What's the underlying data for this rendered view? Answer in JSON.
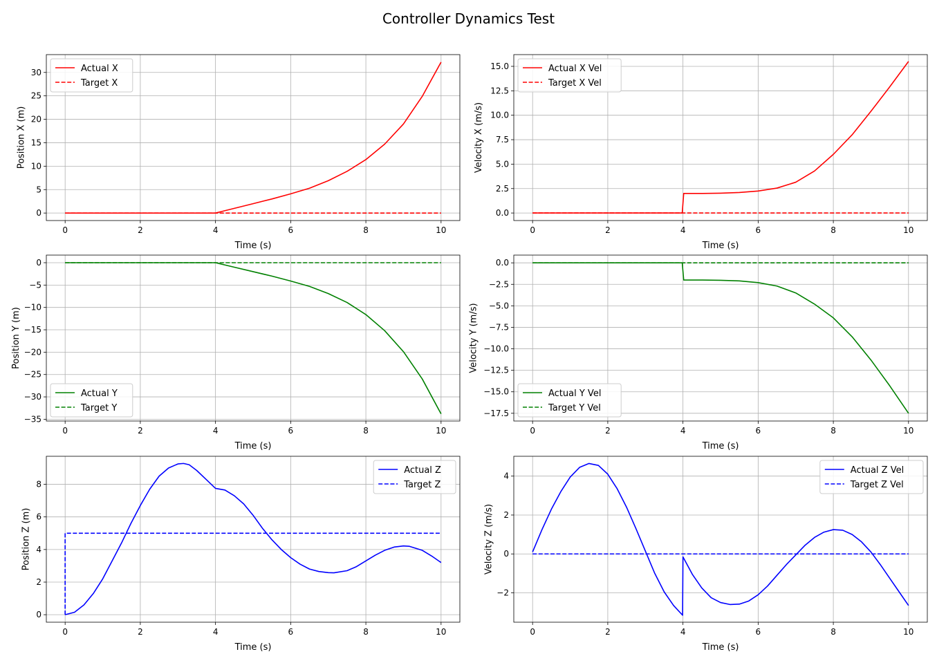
{
  "figure": {
    "title": "Controller Dynamics Test"
  },
  "colors": {
    "x": "#ff0000",
    "y": "#008000",
    "z": "#0000ff",
    "grid": "#b0b0b0",
    "axes": "#000000"
  },
  "chart_data": [
    {
      "id": "pos-x",
      "type": "line",
      "xlabel": "Time (s)",
      "ylabel": "Position X (m)",
      "xlim": [
        -0.5,
        10.5
      ],
      "ylim": [
        -1.6,
        33.8
      ],
      "xticks": [
        0,
        2,
        4,
        6,
        8,
        10
      ],
      "yticks": [
        0,
        5,
        10,
        15,
        20,
        25,
        30
      ],
      "ytick_labels": [
        "0",
        "5",
        "10",
        "15",
        "20",
        "25",
        "30"
      ],
      "grid": true,
      "legend_loc": "upper-left",
      "series": [
        {
          "name": "Actual X",
          "style": "solid",
          "color": "#ff0000",
          "x": [
            0,
            4,
            4.5,
            5,
            5.5,
            6,
            6.5,
            7,
            7.5,
            8,
            8.5,
            9,
            9.5,
            10
          ],
          "y": [
            0,
            0,
            1.0,
            2.0,
            3.0,
            4.1,
            5.3,
            6.9,
            8.9,
            11.4,
            14.7,
            19.0,
            24.9,
            32.2
          ]
        },
        {
          "name": "Target X",
          "style": "dashed",
          "color": "#ff0000",
          "x": [
            0,
            10
          ],
          "y": [
            0,
            0
          ]
        }
      ]
    },
    {
      "id": "vel-x",
      "type": "line",
      "xlabel": "Time (s)",
      "ylabel": "Velocity X (m/s)",
      "xlim": [
        -0.5,
        10.5
      ],
      "ylim": [
        -0.77,
        16.2
      ],
      "xticks": [
        0,
        2,
        4,
        6,
        8,
        10
      ],
      "yticks": [
        0,
        2.5,
        5,
        7.5,
        10,
        12.5,
        15
      ],
      "ytick_labels": [
        "0.0",
        "2.5",
        "5.0",
        "7.5",
        "10.0",
        "12.5",
        "15.0"
      ],
      "grid": true,
      "legend_loc": "upper-left",
      "series": [
        {
          "name": "Actual X Vel",
          "style": "solid",
          "color": "#ff0000",
          "x": [
            0,
            3.98,
            4.02,
            4.5,
            5,
            5.5,
            6,
            6.5,
            7,
            7.5,
            8,
            8.5,
            9,
            9.5,
            10
          ],
          "y": [
            0,
            0,
            2.0,
            2.0,
            2.03,
            2.1,
            2.25,
            2.55,
            3.15,
            4.3,
            6.0,
            8.0,
            10.4,
            12.9,
            15.5
          ]
        },
        {
          "name": "Target X Vel",
          "style": "dashed",
          "color": "#ff0000",
          "x": [
            0,
            10
          ],
          "y": [
            0,
            0
          ]
        }
      ]
    },
    {
      "id": "pos-y",
      "type": "line",
      "xlabel": "Time (s)",
      "ylabel": "Position Y (m)",
      "xlim": [
        -0.5,
        10.5
      ],
      "ylim": [
        -35.4,
        1.7
      ],
      "xticks": [
        0,
        2,
        4,
        6,
        8,
        10
      ],
      "yticks": [
        0,
        -5,
        -10,
        -15,
        -20,
        -25,
        -30,
        -35
      ],
      "ytick_labels": [
        "0",
        "−5",
        "−10",
        "−15",
        "−20",
        "−25",
        "−30",
        "−35"
      ],
      "grid": true,
      "legend_loc": "lower-left",
      "series": [
        {
          "name": "Actual Y",
          "style": "solid",
          "color": "#008000",
          "x": [
            0,
            4,
            4.5,
            5,
            5.5,
            6,
            6.5,
            7,
            7.5,
            8,
            8.5,
            9,
            9.5,
            10
          ],
          "y": [
            0,
            0,
            -1.0,
            -2.0,
            -3.0,
            -4.1,
            -5.3,
            -6.9,
            -8.9,
            -11.6,
            -15.2,
            -19.9,
            -26.0,
            -33.8
          ]
        },
        {
          "name": "Target Y",
          "style": "dashed",
          "color": "#008000",
          "x": [
            0,
            10
          ],
          "y": [
            0,
            0
          ]
        }
      ]
    },
    {
      "id": "vel-y",
      "type": "line",
      "xlabel": "Time (s)",
      "ylabel": "Velocity Y (m/s)",
      "xlim": [
        -0.5,
        10.5
      ],
      "ylim": [
        -18.4,
        0.9
      ],
      "xticks": [
        0,
        2,
        4,
        6,
        8,
        10
      ],
      "yticks": [
        0,
        -2.5,
        -5,
        -7.5,
        -10,
        -12.5,
        -15,
        -17.5
      ],
      "ytick_labels": [
        "0.0",
        "−2.5",
        "−5.0",
        "−7.5",
        "−10.0",
        "−12.5",
        "−15.0",
        "−17.5"
      ],
      "grid": true,
      "legend_loc": "lower-left",
      "series": [
        {
          "name": "Actual Y Vel",
          "style": "solid",
          "color": "#008000",
          "x": [
            0,
            3.98,
            4.02,
            4.5,
            5,
            5.5,
            6,
            6.5,
            7,
            7.5,
            8,
            8.5,
            9,
            9.5,
            10
          ],
          "y": [
            0,
            0,
            -2.0,
            -2.0,
            -2.03,
            -2.1,
            -2.3,
            -2.7,
            -3.5,
            -4.8,
            -6.4,
            -8.6,
            -11.3,
            -14.3,
            -17.5
          ]
        },
        {
          "name": "Target Y Vel",
          "style": "dashed",
          "color": "#008000",
          "x": [
            0,
            10
          ],
          "y": [
            0,
            0
          ]
        }
      ]
    },
    {
      "id": "pos-z",
      "type": "line",
      "xlabel": "Time (s)",
      "ylabel": "Position Z (m)",
      "xlim": [
        -0.5,
        10.5
      ],
      "ylim": [
        -0.46,
        9.72
      ],
      "xticks": [
        0,
        2,
        4,
        6,
        8,
        10
      ],
      "yticks": [
        0,
        2,
        4,
        6,
        8
      ],
      "ytick_labels": [
        "0",
        "2",
        "4",
        "6",
        "8"
      ],
      "grid": true,
      "legend_loc": "upper-right",
      "series": [
        {
          "name": "Actual Z",
          "style": "solid",
          "color": "#0000ff",
          "x": [
            0,
            0.25,
            0.5,
            0.75,
            1,
            1.25,
            1.5,
            1.75,
            2,
            2.25,
            2.5,
            2.75,
            3,
            3.15,
            3.3,
            3.5,
            3.75,
            4,
            4.25,
            4.5,
            4.75,
            5,
            5.25,
            5.5,
            5.75,
            6,
            6.25,
            6.5,
            6.75,
            7,
            7.15,
            7.5,
            7.75,
            8,
            8.25,
            8.5,
            8.75,
            9,
            9.15,
            9.5,
            9.75,
            10
          ],
          "y": [
            0,
            0.15,
            0.6,
            1.3,
            2.2,
            3.3,
            4.4,
            5.6,
            6.7,
            7.7,
            8.5,
            9.0,
            9.25,
            9.28,
            9.2,
            8.85,
            8.3,
            7.75,
            7.65,
            7.3,
            6.8,
            6.1,
            5.3,
            4.6,
            4.0,
            3.5,
            3.1,
            2.8,
            2.65,
            2.58,
            2.57,
            2.7,
            2.95,
            3.3,
            3.65,
            3.95,
            4.15,
            4.22,
            4.2,
            3.95,
            3.6,
            3.2
          ]
        },
        {
          "name": "Target Z",
          "style": "dashed",
          "color": "#0000ff",
          "x": [
            0,
            0,
            10
          ],
          "y": [
            0,
            5,
            5
          ]
        }
      ]
    },
    {
      "id": "vel-z",
      "type": "line",
      "xlabel": "Time (s)",
      "ylabel": "Velocity Z (m/s)",
      "xlim": [
        -0.5,
        10.5
      ],
      "ylim": [
        -3.51,
        5.02
      ],
      "xticks": [
        0,
        2,
        4,
        6,
        8,
        10
      ],
      "yticks": [
        -2,
        0,
        2,
        4
      ],
      "ytick_labels": [
        "−2",
        "0",
        "2",
        "4"
      ],
      "grid": true,
      "legend_loc": "upper-right",
      "series": [
        {
          "name": "Actual Z Vel",
          "style": "solid",
          "color": "#0000ff",
          "x": [
            0,
            0.25,
            0.5,
            0.75,
            1,
            1.25,
            1.5,
            1.75,
            2,
            2.25,
            2.5,
            2.75,
            3,
            3.25,
            3.5,
            3.75,
            3.99,
            4.0,
            4.25,
            4.5,
            4.75,
            5,
            5.25,
            5.5,
            5.75,
            6,
            6.25,
            6.5,
            6.75,
            7,
            7.25,
            7.5,
            7.75,
            8,
            8.25,
            8.5,
            8.75,
            9,
            9.25,
            9.5,
            9.75,
            10
          ],
          "y": [
            0.1,
            1.25,
            2.3,
            3.2,
            3.95,
            4.45,
            4.65,
            4.55,
            4.1,
            3.35,
            2.4,
            1.3,
            0.15,
            -1.0,
            -1.95,
            -2.65,
            -3.15,
            -0.15,
            -1.05,
            -1.75,
            -2.25,
            -2.5,
            -2.6,
            -2.58,
            -2.42,
            -2.1,
            -1.65,
            -1.1,
            -0.55,
            -0.05,
            0.45,
            0.85,
            1.12,
            1.25,
            1.22,
            1.0,
            0.62,
            0.1,
            -0.55,
            -1.25,
            -1.95,
            -2.65
          ]
        },
        {
          "name": "Target Z Vel",
          "style": "dashed",
          "color": "#0000ff",
          "x": [
            0,
            10
          ],
          "y": [
            0,
            0
          ]
        }
      ]
    }
  ]
}
